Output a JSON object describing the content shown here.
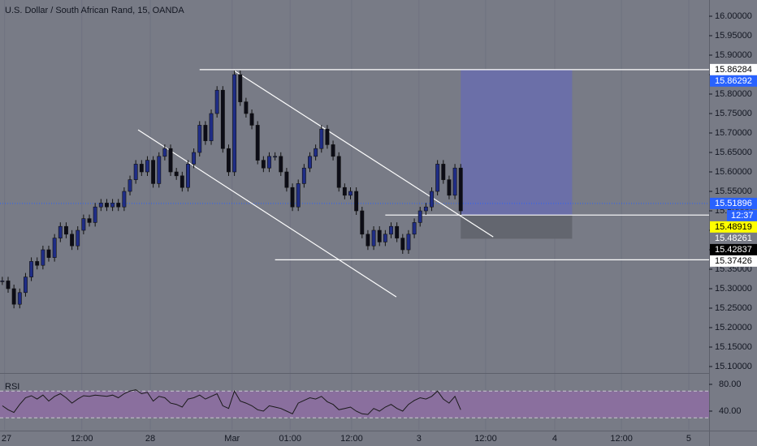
{
  "chart_data": {
    "type": "candlestick",
    "title": "U.S. Dollar / South African Rand, 15, OANDA",
    "close": [
      15.32,
      15.3,
      15.26,
      15.29,
      15.33,
      15.37,
      15.36,
      15.4,
      15.38,
      15.43,
      15.46,
      15.44,
      15.41,
      15.45,
      15.48,
      15.47,
      15.51,
      15.52,
      15.51,
      15.52,
      15.51,
      15.55,
      15.58,
      15.62,
      15.6,
      15.63,
      15.57,
      15.64,
      15.66,
      15.6,
      15.59,
      15.56,
      15.62,
      15.65,
      15.72,
      15.68,
      15.75,
      15.81,
      15.66,
      15.6,
      15.85,
      15.78,
      15.75,
      15.72,
      15.63,
      15.61,
      15.64,
      15.64,
      15.6,
      15.56,
      15.51,
      15.57,
      15.61,
      15.64,
      15.66,
      15.71,
      15.67,
      15.64,
      15.56,
      15.54,
      15.55,
      15.5,
      15.44,
      15.41,
      15.45,
      15.42,
      15.44,
      15.46,
      15.43,
      15.4,
      15.44,
      15.47,
      15.5,
      15.51,
      15.55,
      15.62,
      15.58,
      15.54,
      15.61,
      15.5
    ],
    "up_color": "#1f2d86",
    "down_color": "#0c0c16",
    "xlim": [
      -0.4,
      121.8
    ],
    "xticks": [
      {
        "value": 0.4,
        "label": "27"
      },
      {
        "value": 13.7,
        "label": "12:00"
      },
      {
        "value": 25.5,
        "label": "28"
      },
      {
        "value": 39.6,
        "label": "Mar"
      },
      {
        "value": 49.6,
        "label": "01:00"
      },
      {
        "value": 60.2,
        "label": "12:00"
      },
      {
        "value": 71.8,
        "label": "3"
      },
      {
        "value": 83.3,
        "label": "12:00"
      },
      {
        "value": 95.2,
        "label": "4"
      },
      {
        "value": 106.7,
        "label": "12:00"
      },
      {
        "value": 118.3,
        "label": "5"
      }
    ],
    "ylim": [
      15.0875,
      16.0417
    ],
    "yticks": [
      {
        "value": 16.0,
        "label": "16.00000"
      },
      {
        "value": 15.95,
        "label": "15.95000"
      },
      {
        "value": 15.9,
        "label": "15.90000"
      },
      {
        "value": 15.85,
        "label": "15.85000"
      },
      {
        "value": 15.8,
        "label": "15.80000"
      },
      {
        "value": 15.75,
        "label": "15.75000"
      },
      {
        "value": 15.7,
        "label": "15.70000"
      },
      {
        "value": 15.65,
        "label": "15.65000"
      },
      {
        "value": 15.6,
        "label": "15.60000"
      },
      {
        "value": 15.55,
        "label": "15.55000"
      },
      {
        "value": 15.5,
        "label": "15.50000"
      },
      {
        "value": 15.45,
        "label": "15.45000"
      },
      {
        "value": 15.4,
        "label": "15.40000"
      },
      {
        "value": 15.35,
        "label": "15.35000"
      },
      {
        "value": 15.3,
        "label": "15.30000"
      },
      {
        "value": 15.25,
        "label": "15.25000"
      },
      {
        "value": 15.2,
        "label": "15.20000"
      },
      {
        "value": 15.15,
        "label": "15.15000"
      },
      {
        "value": 15.1,
        "label": "15.10000"
      }
    ],
    "current_price": 15.51896,
    "countdown": "12:37",
    "price_tags": [
      {
        "value": 15.86284,
        "label": "15.86284",
        "bg": "#ffffff",
        "fg": "#000000"
      },
      {
        "value": 15.86292,
        "label": "15.86292",
        "bg": "#2962ff",
        "fg": "#ffffff"
      },
      {
        "value": 15.51896,
        "label": "15.51896",
        "bg": "#2962ff",
        "fg": "#ffffff"
      },
      {
        "value": 15.48919,
        "label": "15.48919",
        "bg": "#ffff00",
        "fg": "#000000"
      },
      {
        "value": 15.48261,
        "label": "15.48261",
        "bg": "#787b86",
        "fg": "#ffffff"
      },
      {
        "value": 15.42837,
        "label": "15.42837",
        "bg": "#000000",
        "fg": "#ffffff"
      },
      {
        "value": 15.37426,
        "label": "15.37426",
        "bg": "#ffffff",
        "fg": "#000000"
      }
    ],
    "hlines": [
      {
        "value": 15.86284,
        "from": 34
      },
      {
        "value": 15.48919,
        "from": 66
      },
      {
        "value": 15.37426,
        "from": 47
      }
    ],
    "trendlines": [
      [
        [
          40,
          15.86
        ],
        [
          84.6,
          15.433
        ]
      ],
      [
        [
          23.4,
          15.708
        ],
        [
          67.9,
          15.279
        ]
      ]
    ],
    "position": {
      "entry": 15.48919,
      "target": 15.86284,
      "stop": 15.42837,
      "from": 79,
      "to": 98.2
    },
    "rsi": {
      "label": "RSI",
      "values": [
        48,
        42,
        38,
        50,
        60,
        63,
        58,
        64,
        55,
        62,
        66,
        60,
        52,
        58,
        63,
        62,
        64,
        63,
        62,
        64,
        60,
        66,
        70,
        72,
        66,
        68,
        55,
        62,
        60,
        52,
        50,
        46,
        58,
        60,
        64,
        58,
        62,
        66,
        48,
        44,
        70,
        55,
        52,
        48,
        42,
        40,
        48,
        46,
        44,
        40,
        36,
        52,
        56,
        60,
        58,
        62,
        54,
        50,
        42,
        44,
        46,
        40,
        36,
        35,
        44,
        40,
        46,
        50,
        44,
        40,
        50,
        56,
        60,
        58,
        62,
        70,
        58,
        52,
        62,
        42
      ],
      "color": "#1a1a1a",
      "ylim": [
        12.1,
        93.3
      ],
      "band": [
        30,
        70
      ],
      "yticks": [
        {
          "value": 80,
          "label": "80.00"
        },
        {
          "value": 40,
          "label": "40.00"
        }
      ]
    }
  }
}
